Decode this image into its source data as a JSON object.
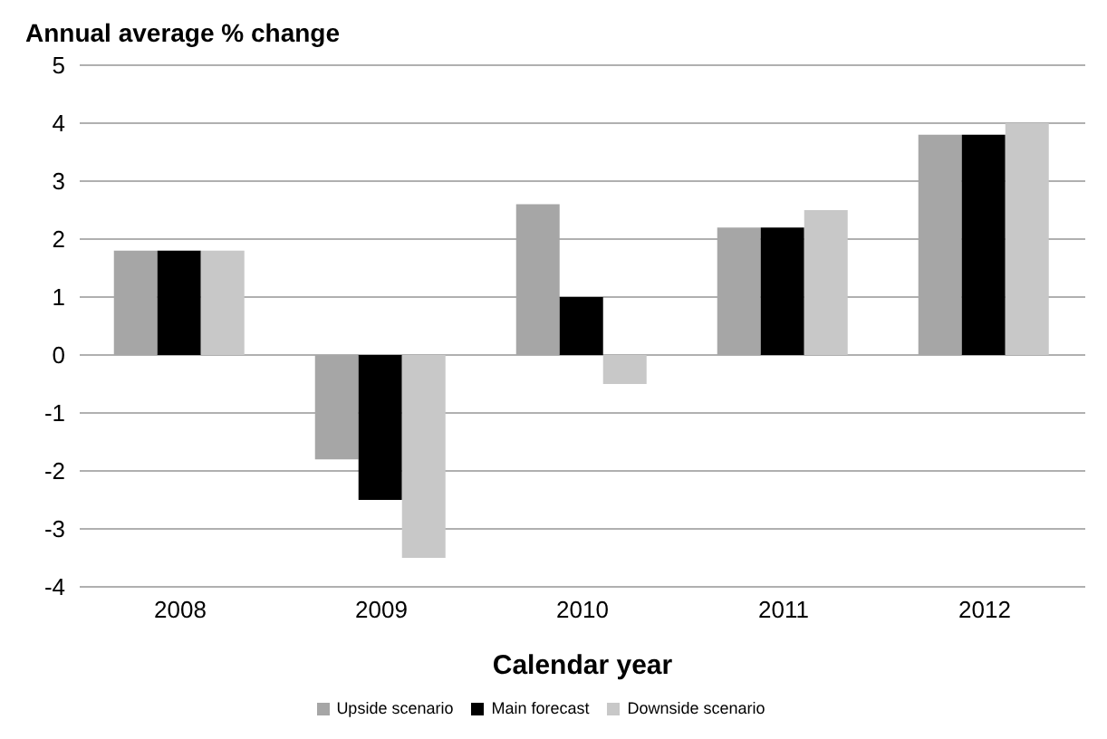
{
  "chart_data": {
    "type": "bar",
    "title": "Annual average % change",
    "xlabel": "Calendar year",
    "categories": [
      "2008",
      "2009",
      "2010",
      "2011",
      "2012"
    ],
    "series": [
      {
        "name": "Upside scenario",
        "color": "#a6a6a6",
        "values": [
          1.8,
          -1.8,
          2.6,
          2.2,
          3.8
        ]
      },
      {
        "name": "Main forecast",
        "color": "#000000",
        "values": [
          1.8,
          -2.5,
          1.0,
          2.2,
          3.8
        ]
      },
      {
        "name": "Downside scenario",
        "color": "#c8c8c8",
        "values": [
          1.8,
          -3.5,
          -0.5,
          2.5,
          4.0
        ]
      }
    ],
    "ylim": [
      -4,
      5
    ],
    "yticks": [
      -4,
      -3,
      -2,
      -1,
      0,
      1,
      2,
      3,
      4,
      5
    ],
    "grid": "y",
    "legend": "bottom"
  }
}
